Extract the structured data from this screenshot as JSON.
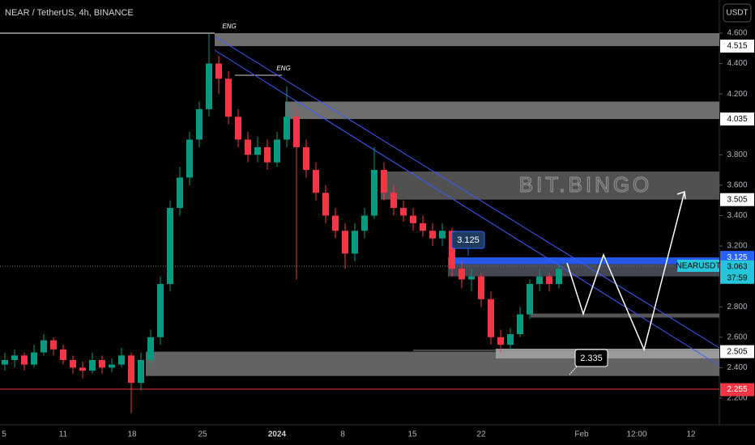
{
  "header": {
    "title": "NEAR / TetherUS, 4h, BINANCE",
    "currency": "USDT"
  },
  "chart_data": {
    "type": "candlestick",
    "ylim": [
      1.891,
      4.818
    ],
    "yticks": [
      {
        "value": 4.6,
        "label": "4.600"
      },
      {
        "value": 4.4,
        "label": "4.400"
      },
      {
        "value": 4.2,
        "label": "4.200"
      },
      {
        "value": 3.8,
        "label": "3.800"
      },
      {
        "value": 3.6,
        "label": "3.600"
      },
      {
        "value": 3.4,
        "label": "3.400"
      },
      {
        "value": 3.2,
        "label": "3.200"
      },
      {
        "value": 2.8,
        "label": "2.800"
      },
      {
        "value": 2.6,
        "label": "2.600"
      },
      {
        "value": 2.4,
        "label": "2.400"
      },
      {
        "value": 2.2,
        "label": "2.200"
      }
    ],
    "time_labels": [
      "5",
      "11",
      "18",
      "25",
      "2024",
      "8",
      "15",
      "22",
      "Feb",
      "12:00",
      "12"
    ],
    "up_color": "#089981",
    "down_color": "#f23645",
    "candles": [
      [
        2.42,
        2.5,
        2.38,
        2.45
      ],
      [
        2.45,
        2.52,
        2.4,
        2.48
      ],
      [
        2.48,
        2.5,
        2.38,
        2.42
      ],
      [
        2.42,
        2.55,
        2.4,
        2.5
      ],
      [
        2.5,
        2.62,
        2.48,
        2.58
      ],
      [
        2.58,
        2.6,
        2.48,
        2.52
      ],
      [
        2.52,
        2.55,
        2.42,
        2.45
      ],
      [
        2.45,
        2.48,
        2.36,
        2.4
      ],
      [
        2.4,
        2.44,
        2.33,
        2.38
      ],
      [
        2.38,
        2.5,
        2.36,
        2.45
      ],
      [
        2.45,
        2.48,
        2.36,
        2.4
      ],
      [
        2.4,
        2.46,
        2.37,
        2.42
      ],
      [
        2.42,
        2.53,
        2.4,
        2.48
      ],
      [
        2.48,
        2.5,
        2.1,
        2.3
      ],
      [
        2.3,
        2.5,
        2.25,
        2.45
      ],
      [
        2.45,
        2.65,
        2.42,
        2.6
      ],
      [
        2.6,
        3.0,
        2.55,
        2.95
      ],
      [
        2.95,
        3.5,
        2.9,
        3.45
      ],
      [
        3.45,
        3.72,
        3.4,
        3.65
      ],
      [
        3.65,
        3.95,
        3.6,
        3.9
      ],
      [
        3.9,
        4.15,
        3.85,
        4.1
      ],
      [
        4.1,
        4.6,
        4.05,
        4.4
      ],
      [
        4.4,
        4.45,
        4.2,
        4.3
      ],
      [
        4.3,
        4.35,
        4.0,
        4.05
      ],
      [
        4.05,
        4.1,
        3.85,
        3.9
      ],
      [
        3.9,
        3.95,
        3.75,
        3.8
      ],
      [
        3.8,
        3.92,
        3.75,
        3.85
      ],
      [
        3.85,
        3.9,
        3.7,
        3.75
      ],
      [
        3.75,
        3.95,
        3.72,
        3.9
      ],
      [
        3.9,
        4.25,
        3.85,
        4.05
      ],
      [
        4.05,
        4.1,
        2.98,
        3.85
      ],
      [
        3.85,
        3.9,
        3.65,
        3.7
      ],
      [
        3.7,
        3.75,
        3.5,
        3.55
      ],
      [
        3.55,
        3.6,
        3.35,
        3.4
      ],
      [
        3.4,
        3.45,
        3.25,
        3.3
      ],
      [
        3.3,
        3.35,
        3.05,
        3.15
      ],
      [
        3.15,
        3.35,
        3.1,
        3.3
      ],
      [
        3.3,
        3.45,
        3.25,
        3.4
      ],
      [
        3.4,
        3.85,
        3.38,
        3.7
      ],
      [
        3.7,
        3.75,
        3.5,
        3.55
      ],
      [
        3.55,
        3.6,
        3.4,
        3.45
      ],
      [
        3.45,
        3.5,
        3.36,
        3.4
      ],
      [
        3.4,
        3.45,
        3.3,
        3.35
      ],
      [
        3.35,
        3.4,
        3.26,
        3.3
      ],
      [
        3.3,
        3.35,
        3.2,
        3.25
      ],
      [
        3.25,
        3.35,
        3.2,
        3.3
      ],
      [
        3.3,
        3.32,
        3.0,
        3.05
      ],
      [
        3.05,
        3.1,
        2.92,
        2.98
      ],
      [
        2.98,
        3.05,
        2.9,
        3.0
      ],
      [
        3.0,
        3.02,
        2.8,
        2.85
      ],
      [
        2.85,
        2.9,
        2.55,
        2.6
      ],
      [
        2.6,
        2.65,
        2.5,
        2.55
      ],
      [
        2.55,
        2.66,
        2.52,
        2.62
      ],
      [
        2.62,
        2.8,
        2.6,
        2.75
      ],
      [
        2.75,
        2.98,
        2.72,
        2.95
      ],
      [
        2.95,
        3.05,
        2.9,
        3.0
      ],
      [
        3.0,
        3.02,
        2.9,
        2.95
      ],
      [
        2.95,
        3.08,
        2.92,
        3.05
      ]
    ],
    "zones": [
      {
        "from": 4.515,
        "to": 4.6,
        "color": "#7a7a7a"
      },
      {
        "from": 4.035,
        "to": 4.15,
        "color": "#7a7a7a"
      },
      {
        "from": 3.505,
        "to": 3.69,
        "color": "#5a5a5a"
      },
      {
        "from": 3.08,
        "to": 3.125,
        "color": "#2962ff"
      },
      {
        "from": 3.0,
        "to": 3.08,
        "color": "#4a4f5a"
      },
      {
        "from": 2.345,
        "to": 2.505,
        "color": "#6e6e6e"
      }
    ],
    "price_labels": [
      {
        "value": 4.515,
        "color": "#ffffff",
        "text_color": "#000000"
      },
      {
        "value": 4.035,
        "color": "#ffffff",
        "text_color": "#000000"
      },
      {
        "value": 3.505,
        "color": "#ffffff",
        "text_color": "#000000"
      },
      {
        "value": 3.125,
        "color": "#2962ff",
        "text_color": "#ffffff"
      },
      {
        "value": 3.063,
        "color": "#26c6da",
        "text_color": "#000000"
      },
      {
        "value": 2.505,
        "color": "#ffffff",
        "text_color": "#000000"
      },
      {
        "value": 2.255,
        "color": "#f23645",
        "text_color": "#ffffff"
      }
    ],
    "symbol_label": "NEARUSDT",
    "countdown": "37:59",
    "annotations": {
      "eng_1": "ENG",
      "eng_2": "ENG",
      "callout_1": "3.125",
      "callout_2": "2.335",
      "watermark": "BIT.BINGO"
    }
  }
}
